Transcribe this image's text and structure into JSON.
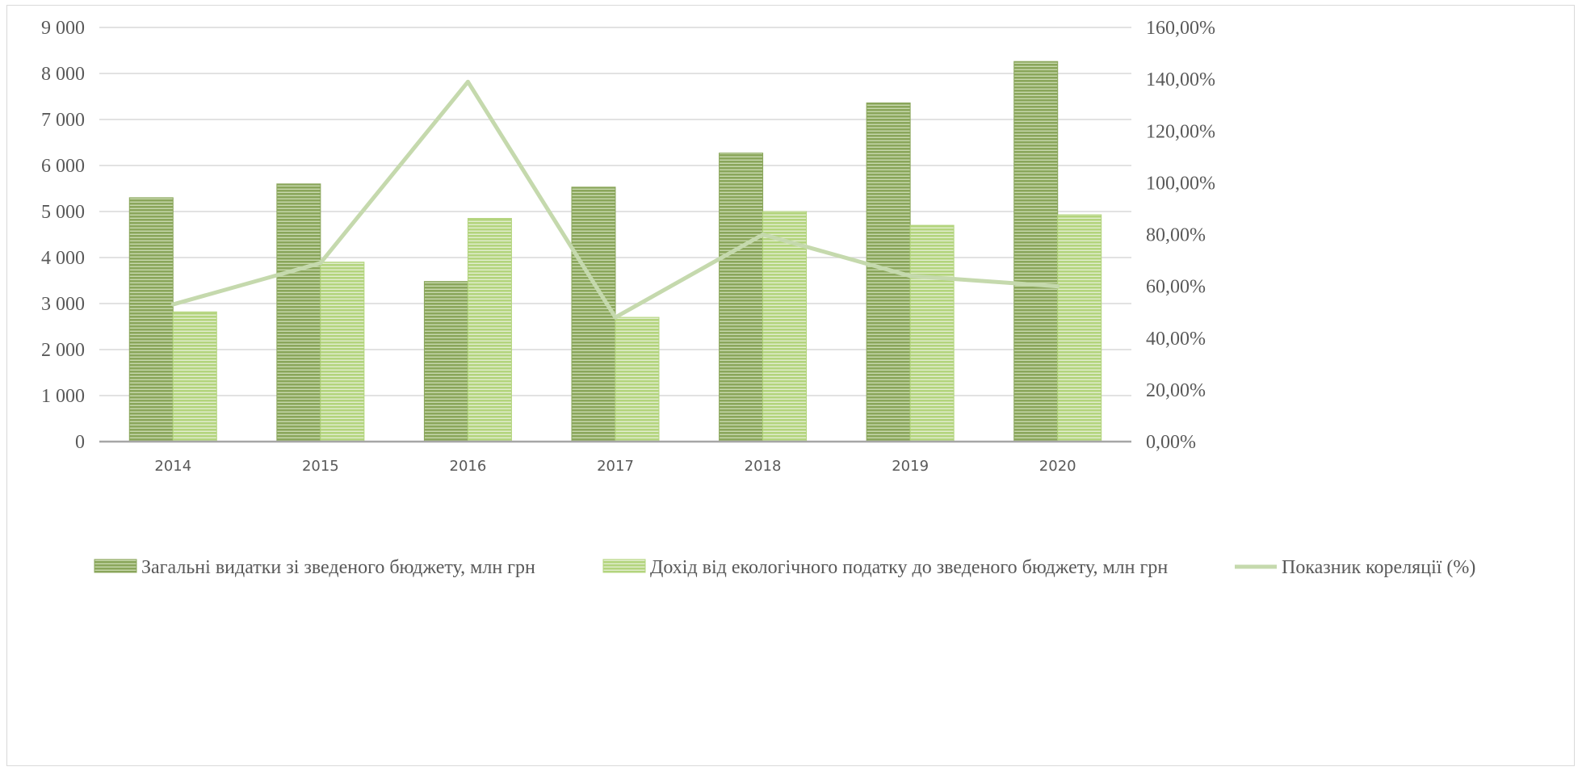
{
  "chart_data": {
    "type": "bar",
    "categories": [
      "2014",
      "2015",
      "2016",
      "2017",
      "2018",
      "2019",
      "2020"
    ],
    "series": [
      {
        "name": "Загальні видатки зі зведеного бюджету, млн грн",
        "kind": "bar",
        "axis": "left",
        "color": "#8aa65b",
        "values": [
          5300,
          5600,
          3480,
          5530,
          6270,
          7360,
          8260
        ]
      },
      {
        "name": "Дохід від екологічного податку до зведеного бюджету, млн грн",
        "kind": "bar",
        "axis": "left",
        "color": "#b3d47d",
        "values": [
          2820,
          3900,
          4850,
          2700,
          5000,
          4700,
          4930
        ]
      },
      {
        "name": "Показник кореляції (%)",
        "kind": "line",
        "axis": "right",
        "color": "#c5d9ad",
        "values": [
          53,
          69,
          139,
          48,
          80,
          64,
          60
        ]
      }
    ],
    "y_left": {
      "ylim": [
        0,
        9000
      ],
      "ticks": [
        0,
        1000,
        2000,
        3000,
        4000,
        5000,
        6000,
        7000,
        8000,
        9000
      ],
      "tick_labels": [
        "0",
        "1 000",
        "2 000",
        "3 000",
        "4 000",
        "5 000",
        "6 000",
        "7 000",
        "8 000",
        "9 000"
      ]
    },
    "y_right": {
      "ylim": [
        0,
        160
      ],
      "ticks": [
        0,
        20,
        40,
        60,
        80,
        100,
        120,
        140,
        160
      ],
      "tick_labels": [
        "0,00%",
        "20,00%",
        "40,00%",
        "60,00%",
        "80,00%",
        "100,00%",
        "120,00%",
        "140,00%",
        "160,00%"
      ]
    },
    "grid": true,
    "legend_position": "bottom",
    "title": "",
    "xlabel": "",
    "ylabel": ""
  }
}
